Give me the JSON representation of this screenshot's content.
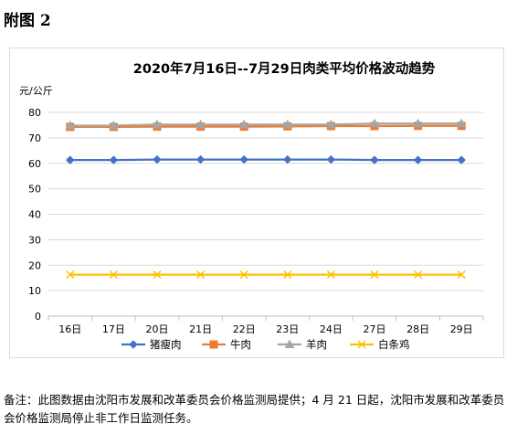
{
  "page": {
    "heading": "附图 2",
    "footnote": "备注：此图数据由沈阳市发展和改革委员会价格监测局提供；4 月 21 日起，沈阳市发展和改革委员会价格监测局停止非工作日监测任务。"
  },
  "chart_data": {
    "type": "line",
    "title": "2020年7月16日--7月29日肉类平均价格波动趋势",
    "ylabel": "元/公斤",
    "xlabel": "",
    "categories": [
      "16日",
      "17日",
      "20日",
      "21日",
      "22日",
      "23日",
      "24日",
      "27日",
      "28日",
      "29日"
    ],
    "ylim": [
      0,
      80
    ],
    "yticks": [
      0,
      10,
      20,
      30,
      40,
      50,
      60,
      70,
      80
    ],
    "grid": true,
    "legend_position": "bottom",
    "series": [
      {
        "name": "猪瘦肉",
        "color": "#4472c4",
        "marker": "diamond",
        "values": [
          61.3,
          61.3,
          61.5,
          61.5,
          61.5,
          61.5,
          61.5,
          61.3,
          61.3,
          61.3
        ]
      },
      {
        "name": "牛肉",
        "color": "#ed7d31",
        "marker": "square",
        "values": [
          74.3,
          74.3,
          74.4,
          74.4,
          74.4,
          74.5,
          74.6,
          74.6,
          74.7,
          74.7
        ]
      },
      {
        "name": "羊肉",
        "color": "#a5a5a5",
        "marker": "triangle",
        "values": [
          74.8,
          74.8,
          75.2,
          75.2,
          75.2,
          75.2,
          75.2,
          75.6,
          75.6,
          75.6
        ]
      },
      {
        "name": "白条鸡",
        "color": "#ffc000",
        "marker": "x",
        "values": [
          16.3,
          16.3,
          16.3,
          16.3,
          16.3,
          16.3,
          16.3,
          16.3,
          16.3,
          16.3
        ]
      }
    ]
  }
}
